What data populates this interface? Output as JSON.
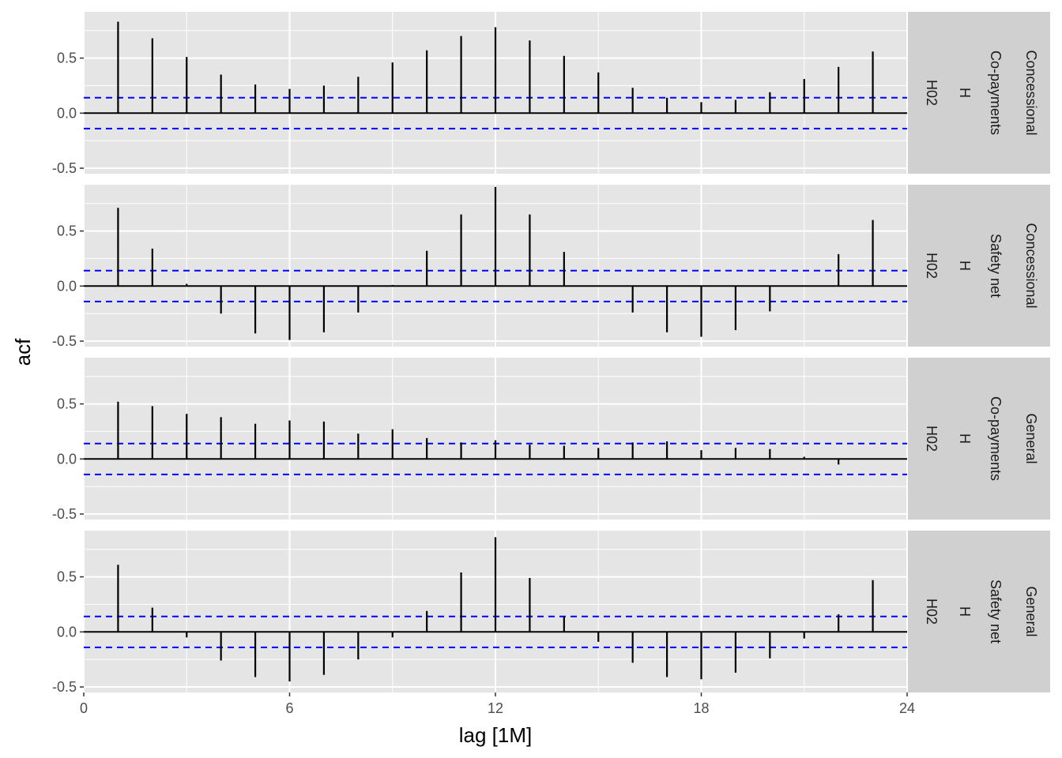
{
  "chart_data": {
    "type": "bar",
    "chart_kind": "acf-correlogram-faceted",
    "xlabel": "lag [1M]",
    "ylabel": "acf",
    "xlim": [
      0,
      24
    ],
    "ylim": [
      -0.55,
      0.92
    ],
    "x_ticks": [
      0,
      6,
      12,
      18,
      24
    ],
    "y_ticks": [
      -0.5,
      0.0,
      0.5
    ],
    "y_tick_labels": [
      "-0.5",
      "0.0",
      "0.5"
    ],
    "significance_bounds": [
      0.14,
      -0.14
    ],
    "grid": true,
    "colors": {
      "panel_bg": "#e5e5e5",
      "strip_bg": "#d0d0d0",
      "grid": "#ffffff",
      "bars": "#000000",
      "bounds": "#0000ff"
    },
    "lags": [
      1,
      2,
      3,
      4,
      5,
      6,
      7,
      8,
      9,
      10,
      11,
      12,
      13,
      14,
      15,
      16,
      17,
      18,
      19,
      20,
      21,
      22,
      23
    ],
    "panels": [
      {
        "strip": [
          "Concessional",
          "Co-payments",
          "H",
          "H02"
        ],
        "values": [
          0.83,
          0.68,
          0.51,
          0.35,
          0.26,
          0.22,
          0.25,
          0.33,
          0.46,
          0.57,
          0.7,
          0.78,
          0.66,
          0.52,
          0.37,
          0.23,
          0.14,
          0.1,
          0.12,
          0.19,
          0.31,
          0.42,
          0.56
        ]
      },
      {
        "strip": [
          "Concessional",
          "Safety net",
          "H",
          "H02"
        ],
        "values": [
          0.71,
          0.34,
          0.02,
          -0.25,
          -0.43,
          -0.49,
          -0.42,
          -0.24,
          0.01,
          0.32,
          0.65,
          0.9,
          0.65,
          0.31,
          0.0,
          -0.24,
          -0.42,
          -0.46,
          -0.4,
          -0.23,
          0.0,
          0.29,
          0.6
        ]
      },
      {
        "strip": [
          "General",
          "Co-payments",
          "H",
          "H02"
        ],
        "values": [
          0.52,
          0.48,
          0.41,
          0.38,
          0.32,
          0.35,
          0.34,
          0.23,
          0.27,
          0.19,
          0.15,
          0.17,
          0.13,
          0.12,
          0.1,
          0.15,
          0.16,
          0.08,
          0.1,
          0.09,
          0.02,
          -0.05,
          0.0
        ]
      },
      {
        "strip": [
          "General",
          "Safety net",
          "H",
          "H02"
        ],
        "values": [
          0.61,
          0.22,
          -0.05,
          -0.26,
          -0.41,
          -0.45,
          -0.39,
          -0.25,
          -0.05,
          0.19,
          0.54,
          0.86,
          0.49,
          0.14,
          -0.09,
          -0.28,
          -0.41,
          -0.43,
          -0.37,
          -0.24,
          -0.06,
          0.16,
          0.47
        ]
      }
    ]
  }
}
